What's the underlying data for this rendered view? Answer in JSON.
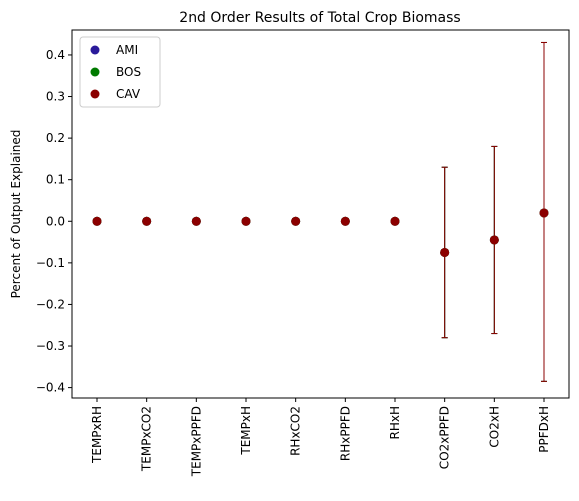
{
  "chart_data": {
    "type": "scatter",
    "title": "2nd Order Results of Total Crop Biomass",
    "xlabel": "",
    "ylabel": "Percent of Output Explained",
    "ylim": [
      -0.425,
      0.46
    ],
    "yticks": [
      0.4,
      0.3,
      0.2,
      0.1,
      0.0,
      -0.1,
      -0.2,
      -0.3,
      -0.4
    ],
    "ytick_labels": [
      "0.4",
      "0.3",
      "0.2",
      "0.1",
      "0.0",
      "−0.1",
      "−0.2",
      "−0.3",
      "−0.4"
    ],
    "categories": [
      "TEMPxRH",
      "TEMPxCO2",
      "TEMPxPPFD",
      "TEMPxH",
      "RHxCO2",
      "RHxPPFD",
      "RHxH",
      "CO2xPPFD",
      "CO2xH",
      "PPFDxH"
    ],
    "legend_position": "top-left",
    "grid": false,
    "series": [
      {
        "name": "AMI",
        "color": "#2a1a9a",
        "values": [
          0,
          0,
          0,
          0,
          0,
          0,
          0,
          -0.075,
          -0.045,
          0.02
        ],
        "err_low": [
          0,
          0,
          0,
          0,
          0,
          0,
          0,
          -0.28,
          -0.27,
          -0.385
        ],
        "err_high": [
          0,
          0,
          0,
          0,
          0,
          0,
          0,
          0.13,
          0.18,
          0.43
        ]
      },
      {
        "name": "BOS",
        "color": "#007a00",
        "values": [
          0,
          0,
          0,
          0,
          0,
          0,
          0,
          -0.075,
          -0.045,
          0.02
        ],
        "err_low": [
          0,
          0,
          0,
          0,
          0,
          0,
          0,
          -0.28,
          -0.27,
          -0.385
        ],
        "err_high": [
          0,
          0,
          0,
          0,
          0,
          0,
          0,
          0.13,
          0.18,
          0.43
        ]
      },
      {
        "name": "CAV",
        "color": "#8b0000",
        "values": [
          0,
          0,
          0,
          0,
          0,
          0,
          0,
          -0.075,
          -0.045,
          0.02
        ],
        "err_low": [
          0,
          0,
          0,
          0,
          0,
          0,
          0,
          -0.28,
          -0.27,
          -0.385
        ],
        "err_high": [
          0,
          0,
          0,
          0,
          0,
          0,
          0,
          0.13,
          0.18,
          0.43
        ]
      }
    ]
  }
}
